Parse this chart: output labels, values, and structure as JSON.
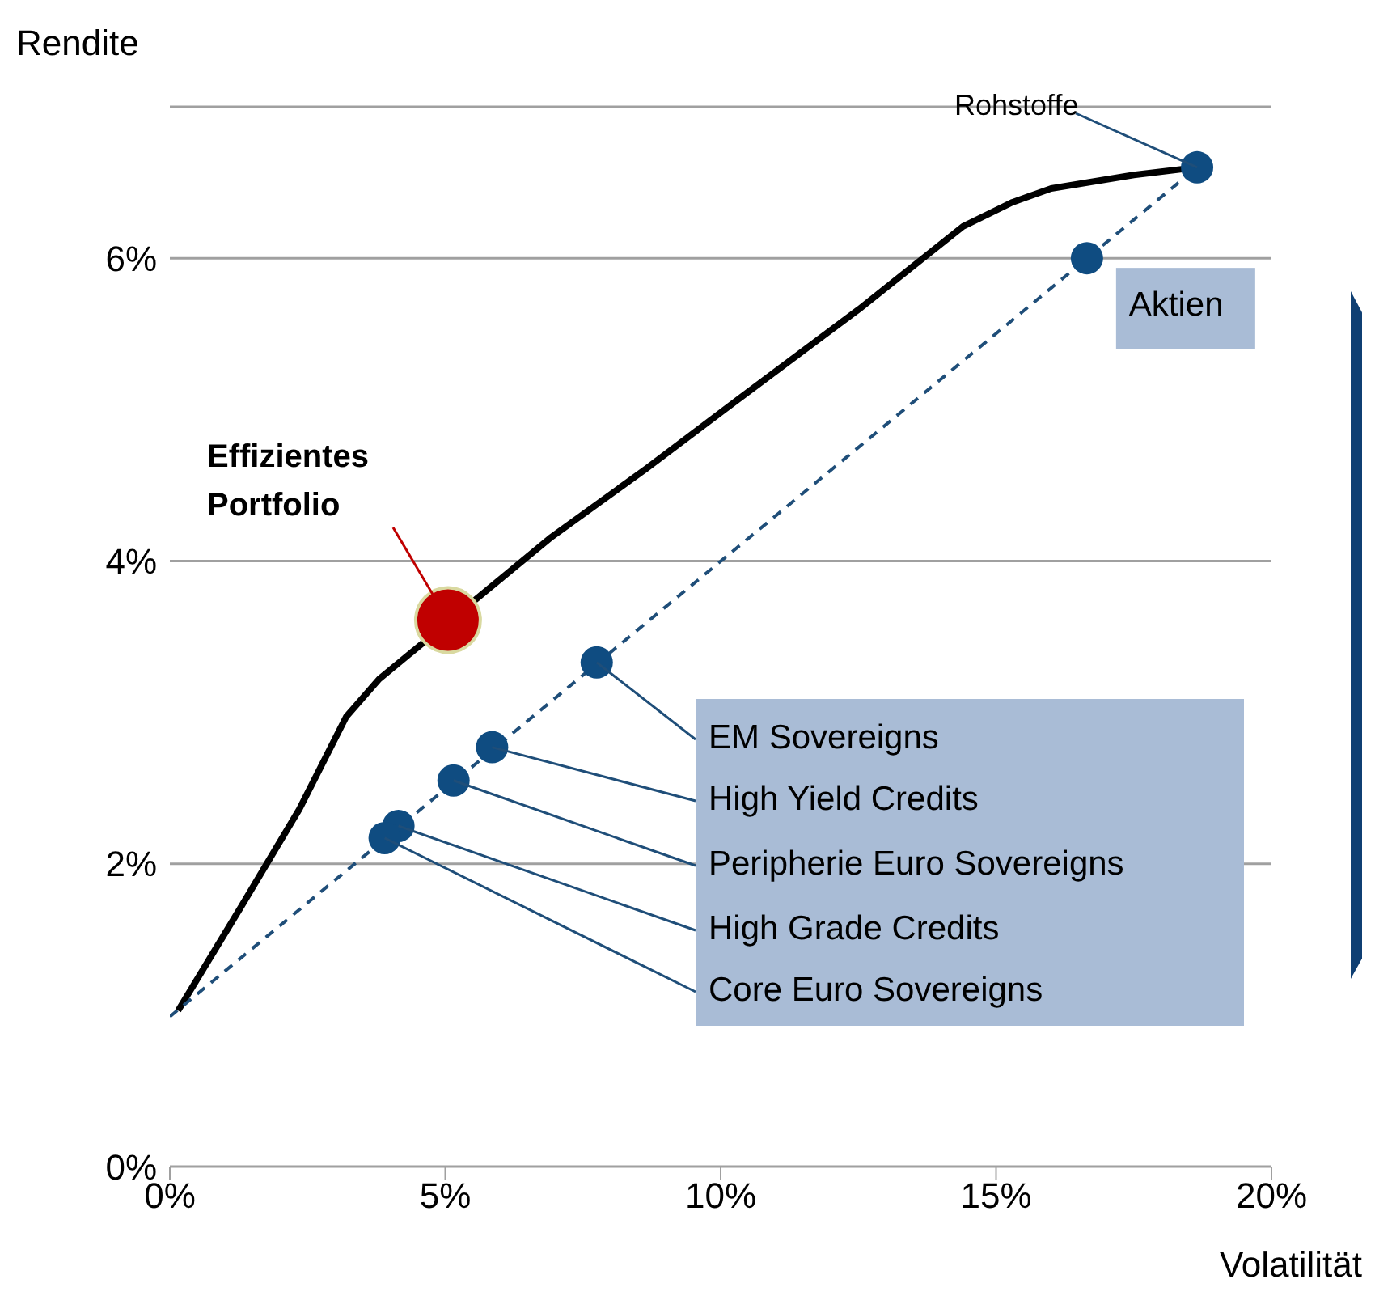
{
  "chart_data": {
    "type": "scatter",
    "xlabel": "Volatilität",
    "ylabel": "Rendite",
    "xlim": [
      0,
      20
    ],
    "ylim": [
      0,
      7
    ],
    "xticks": [
      {
        "value": 0,
        "label": "0%"
      },
      {
        "value": 5,
        "label": "5%"
      },
      {
        "value": 10,
        "label": "10%"
      },
      {
        "value": 15,
        "label": "15%"
      },
      {
        "value": 20,
        "label": "20%"
      }
    ],
    "yticks": [
      {
        "value": 0,
        "label": "0%"
      },
      {
        "value": 2,
        "label": "2%"
      },
      {
        "value": 4,
        "label": "4%"
      },
      {
        "value": 6,
        "label": "6%"
      }
    ],
    "grid": "y",
    "legend": false,
    "series": [
      {
        "type": "line",
        "marker": "none",
        "color": "#000000",
        "x": [
          0.15,
          1.3,
          2.35,
          3.2,
          3.8,
          6.9,
          8.65,
          10.4,
          12.5,
          14.4,
          15.3,
          16,
          17.5,
          18.65
        ],
        "values": [
          1.03,
          1.72,
          2.36,
          2.97,
          3.22,
          4.15,
          4.61,
          5.09,
          5.66,
          6.21,
          6.37,
          6.46,
          6.55,
          6.6
        ]
      },
      {
        "type": "line",
        "marker": "none",
        "color": "#1f4e79",
        "line_style": "dashed",
        "x": [
          0,
          18.65
        ],
        "values": [
          0.99,
          6.6
        ]
      },
      {
        "marker": "circle",
        "color": "#0f4c81",
        "x": [
          18.65,
          16.65,
          7.75,
          5.85,
          5.15,
          4.15,
          3.9
        ],
        "values": [
          6.6,
          6.0,
          3.33,
          2.77,
          2.55,
          2.25,
          2.17
        ]
      },
      {
        "marker": "circle",
        "color": "#c00000",
        "x": [
          5.05
        ],
        "values": [
          3.61
        ]
      }
    ],
    "annotations": [
      {
        "text": "Rohstoffe",
        "x": 18.65,
        "y": 6.6
      },
      {
        "text": "Aktien",
        "x": 16.65,
        "y": 6.0
      },
      {
        "text": "EM Sovereigns",
        "x": 7.75,
        "y": 3.33
      },
      {
        "text": "High Yield Credits",
        "x": 5.85,
        "y": 2.77
      },
      {
        "text": "Peripherie Euro Sovereigns",
        "x": 5.15,
        "y": 2.55
      },
      {
        "text": "High Grade Credits",
        "x": 4.15,
        "y": 2.25
      },
      {
        "text": "Core Euro Sovereigns",
        "x": 3.9,
        "y": 2.17
      },
      {
        "text": "Effizientes Portfolio",
        "x": 5.05,
        "y": 3.61
      }
    ]
  }
}
